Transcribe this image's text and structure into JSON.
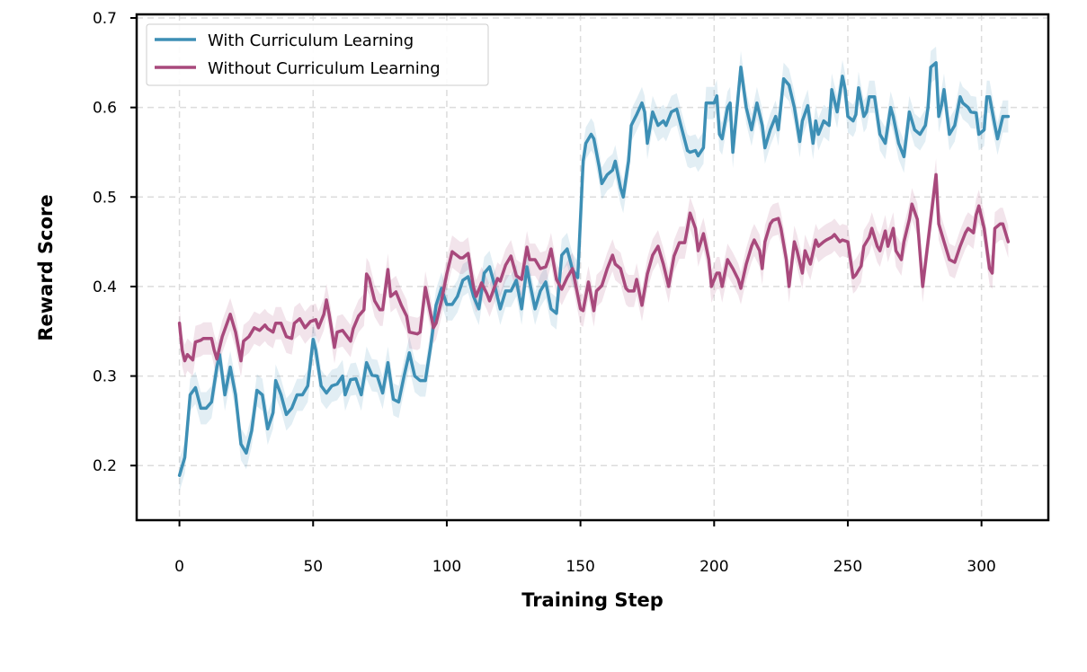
{
  "chart_data": {
    "type": "line",
    "title": "",
    "xlabel": "Training Step",
    "ylabel": "Reward Score",
    "xlim": [
      -16,
      325
    ],
    "ylim": [
      0.139,
      0.704
    ],
    "xticks": [
      0,
      50,
      100,
      150,
      200,
      250,
      300
    ],
    "yticks": [
      0.2,
      0.3,
      0.4,
      0.5,
      0.6,
      0.7
    ],
    "xtick_labels": [
      "0",
      "50",
      "100",
      "150",
      "200",
      "250",
      "300"
    ],
    "ytick_labels": [
      "0.2",
      "0.3",
      "0.4",
      "0.5",
      "0.6",
      "0.7"
    ],
    "grid": true,
    "legend_position": "top-left",
    "series": [
      {
        "name": "With Curriculum Learning",
        "color": "#3d8fb5",
        "band_halfwidth": 0.018,
        "x": [
          0,
          2,
          4,
          6,
          8,
          10,
          12,
          14,
          15,
          17,
          19,
          21,
          23,
          25,
          27,
          29,
          31,
          33,
          35,
          36,
          38,
          40,
          42,
          44,
          46,
          48,
          50,
          51,
          53,
          55,
          57,
          59,
          61,
          62,
          64,
          66,
          68,
          70,
          72,
          74,
          76,
          78,
          80,
          82,
          84,
          86,
          88,
          90,
          92,
          94,
          96,
          98,
          100,
          102,
          104,
          106,
          108,
          110,
          112,
          114,
          116,
          118,
          120,
          122,
          124,
          126,
          128,
          130,
          131,
          133,
          135,
          137,
          139,
          141,
          143,
          145,
          147,
          149,
          151,
          152,
          154,
          155,
          157,
          158,
          160,
          162,
          163,
          165,
          166,
          168,
          169,
          171,
          173,
          174,
          175,
          177,
          179,
          181,
          182,
          184,
          186,
          188,
          190,
          191,
          193,
          194,
          196,
          197,
          200,
          201,
          202,
          203,
          205,
          206,
          207,
          210,
          212,
          214,
          216,
          218,
          219,
          221,
          223,
          224,
          226,
          228,
          230,
          232,
          233,
          235,
          237,
          238,
          239,
          241,
          243,
          244,
          246,
          248,
          249,
          250,
          252,
          253,
          254,
          256,
          257,
          258,
          260,
          262,
          264,
          266,
          267,
          269,
          271,
          273,
          275,
          277,
          279,
          280,
          281,
          283,
          284,
          285,
          286,
          288,
          290,
          292,
          293,
          295,
          296,
          298,
          299,
          301,
          302,
          303,
          305,
          306,
          308,
          310
        ],
        "y": [
          0.189,
          0.209,
          0.279,
          0.287,
          0.264,
          0.264,
          0.271,
          0.31,
          0.324,
          0.279,
          0.31,
          0.279,
          0.224,
          0.214,
          0.239,
          0.284,
          0.279,
          0.241,
          0.259,
          0.295,
          0.279,
          0.257,
          0.264,
          0.279,
          0.279,
          0.289,
          0.341,
          0.329,
          0.289,
          0.281,
          0.289,
          0.291,
          0.3,
          0.279,
          0.296,
          0.297,
          0.279,
          0.315,
          0.301,
          0.3,
          0.281,
          0.315,
          0.274,
          0.271,
          0.3,
          0.326,
          0.3,
          0.295,
          0.295,
          0.334,
          0.379,
          0.398,
          0.38,
          0.38,
          0.389,
          0.407,
          0.411,
          0.389,
          0.375,
          0.415,
          0.422,
          0.4,
          0.375,
          0.395,
          0.395,
          0.407,
          0.375,
          0.422,
          0.405,
          0.375,
          0.395,
          0.405,
          0.375,
          0.37,
          0.435,
          0.442,
          0.419,
          0.41,
          0.54,
          0.56,
          0.57,
          0.565,
          0.534,
          0.515,
          0.525,
          0.53,
          0.54,
          0.51,
          0.5,
          0.54,
          0.58,
          0.592,
          0.605,
          0.595,
          0.56,
          0.595,
          0.58,
          0.585,
          0.58,
          0.595,
          0.598,
          0.575,
          0.552,
          0.55,
          0.552,
          0.546,
          0.555,
          0.605,
          0.605,
          0.613,
          0.57,
          0.565,
          0.6,
          0.605,
          0.55,
          0.645,
          0.6,
          0.575,
          0.605,
          0.58,
          0.555,
          0.575,
          0.59,
          0.575,
          0.632,
          0.625,
          0.6,
          0.562,
          0.585,
          0.602,
          0.56,
          0.585,
          0.57,
          0.585,
          0.58,
          0.62,
          0.595,
          0.635,
          0.62,
          0.59,
          0.585,
          0.592,
          0.622,
          0.59,
          0.595,
          0.612,
          0.612,
          0.57,
          0.56,
          0.6,
          0.59,
          0.56,
          0.545,
          0.595,
          0.575,
          0.57,
          0.58,
          0.6,
          0.645,
          0.65,
          0.59,
          0.602,
          0.62,
          0.57,
          0.58,
          0.612,
          0.605,
          0.6,
          0.595,
          0.594,
          0.57,
          0.575,
          0.612,
          0.612,
          0.58,
          0.565,
          0.59,
          0.59
        ]
      },
      {
        "name": "Without Curriculum Learning",
        "color": "#a8497c",
        "band_halfwidth": 0.018,
        "x": [
          0,
          1,
          2,
          3,
          5,
          6,
          8,
          9,
          11,
          12,
          13,
          14,
          16,
          19,
          21,
          23,
          24,
          26,
          28,
          30,
          32,
          33,
          35,
          36,
          38,
          40,
          42,
          43,
          45,
          47,
          49,
          51,
          52,
          54,
          55,
          56,
          58,
          59,
          61,
          64,
          65,
          67,
          69,
          70,
          71,
          73,
          75,
          76,
          78,
          79,
          81,
          83,
          85,
          86,
          89,
          90,
          92,
          95,
          96,
          98,
          100,
          102,
          105,
          106,
          108,
          110,
          111,
          113,
          115,
          116,
          119,
          120,
          122,
          124,
          126,
          128,
          130,
          131,
          133,
          135,
          137,
          138,
          139,
          141,
          143,
          145,
          147,
          150,
          151,
          153,
          155,
          156,
          158,
          160,
          162,
          163,
          165,
          167,
          168,
          170,
          171,
          173,
          175,
          177,
          179,
          181,
          183,
          185,
          187,
          189,
          190,
          191,
          193,
          194,
          196,
          198,
          199,
          201,
          202,
          203,
          205,
          207,
          209,
          210,
          212,
          214,
          215,
          217,
          218,
          219,
          221,
          222,
          224,
          225,
          227,
          228,
          230,
          231,
          233,
          234,
          236,
          238,
          239,
          241,
          242,
          244,
          245,
          247,
          248,
          250,
          252,
          253,
          255,
          256,
          258,
          259,
          261,
          262,
          264,
          265,
          267,
          268,
          270,
          271,
          273,
          274,
          276,
          278,
          280,
          283,
          284,
          286,
          288,
          290,
          292,
          294,
          295,
          297,
          298,
          299,
          301,
          303,
          304,
          305,
          307,
          308,
          310
        ],
        "y": [
          0.359,
          0.329,
          0.317,
          0.324,
          0.318,
          0.338,
          0.34,
          0.342,
          0.342,
          0.342,
          0.329,
          0.319,
          0.344,
          0.369,
          0.349,
          0.317,
          0.339,
          0.344,
          0.354,
          0.351,
          0.357,
          0.353,
          0.349,
          0.359,
          0.359,
          0.344,
          0.342,
          0.359,
          0.364,
          0.354,
          0.361,
          0.363,
          0.354,
          0.369,
          0.385,
          0.369,
          0.332,
          0.349,
          0.351,
          0.339,
          0.353,
          0.367,
          0.374,
          0.414,
          0.409,
          0.384,
          0.374,
          0.374,
          0.419,
          0.389,
          0.394,
          0.379,
          0.367,
          0.349,
          0.347,
          0.349,
          0.399,
          0.354,
          0.359,
          0.384,
          0.414,
          0.439,
          0.432,
          0.432,
          0.437,
          0.399,
          0.389,
          0.404,
          0.392,
          0.384,
          0.409,
          0.406,
          0.424,
          0.434,
          0.412,
          0.408,
          0.444,
          0.43,
          0.43,
          0.42,
          0.422,
          0.43,
          0.442,
          0.408,
          0.397,
          0.41,
          0.42,
          0.375,
          0.373,
          0.405,
          0.373,
          0.395,
          0.401,
          0.42,
          0.435,
          0.425,
          0.42,
          0.398,
          0.395,
          0.395,
          0.408,
          0.379,
          0.414,
          0.435,
          0.445,
          0.425,
          0.4,
          0.434,
          0.449,
          0.449,
          0.465,
          0.482,
          0.465,
          0.44,
          0.459,
          0.43,
          0.4,
          0.415,
          0.415,
          0.4,
          0.43,
          0.42,
          0.408,
          0.398,
          0.425,
          0.445,
          0.452,
          0.44,
          0.42,
          0.45,
          0.47,
          0.474,
          0.476,
          0.465,
          0.43,
          0.4,
          0.45,
          0.44,
          0.415,
          0.44,
          0.425,
          0.452,
          0.445,
          0.45,
          0.452,
          0.455,
          0.458,
          0.45,
          0.452,
          0.45,
          0.41,
          0.413,
          0.423,
          0.445,
          0.455,
          0.465,
          0.445,
          0.44,
          0.462,
          0.445,
          0.465,
          0.44,
          0.43,
          0.45,
          0.475,
          0.492,
          0.475,
          0.4,
          0.45,
          0.525,
          0.47,
          0.45,
          0.43,
          0.427,
          0.445,
          0.46,
          0.465,
          0.46,
          0.48,
          0.49,
          0.465,
          0.42,
          0.415,
          0.465,
          0.47,
          0.47,
          0.45
        ]
      }
    ]
  }
}
